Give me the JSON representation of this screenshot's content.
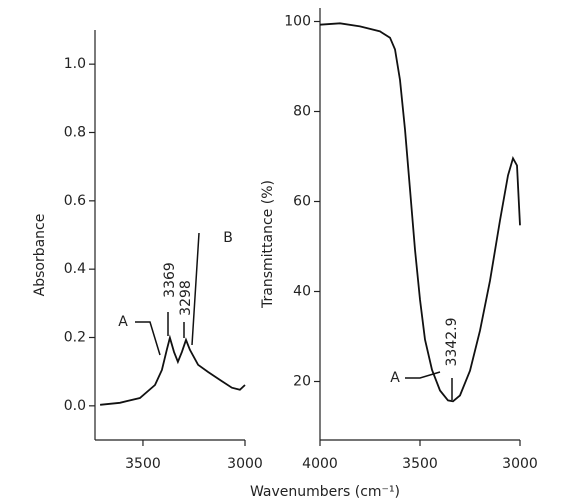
{
  "chart_data": [
    {
      "type": "line",
      "ylabel": "Absorbance",
      "xlim": [
        3735,
        3000
      ],
      "xticks": [
        3500,
        3000
      ],
      "ylim": [
        -0.1,
        1.1
      ],
      "yticks": [
        {
          "value": 0,
          "label": "0.0"
        },
        0.2,
        0.4,
        0.6,
        0.8,
        {
          "value": 1,
          "label": "1.0"
        }
      ],
      "annotations": [
        "A",
        "3369",
        "3298",
        "B"
      ],
      "series": [
        {
          "color": "#111",
          "x": [
            3710,
            3613,
            3515,
            3441,
            3407,
            3383,
            3368,
            3348,
            3329,
            3309,
            3289,
            3270,
            3230,
            3181,
            3123,
            3064,
            3025,
            3000
          ],
          "values": [
            0.003,
            0.009,
            0.023,
            0.061,
            0.105,
            0.164,
            0.199,
            0.158,
            0.129,
            0.158,
            0.193,
            0.164,
            0.12,
            0.099,
            0.076,
            0.053,
            0.047,
            0.061
          ]
        }
      ]
    },
    {
      "type": "line",
      "ylabel": "Transmittance (%)",
      "xlabel": "Wavenumbers (cm⁻¹)",
      "xlim": [
        4000,
        3000
      ],
      "xticks": [
        4000,
        3500,
        3000
      ],
      "ylim": [
        7,
        103
      ],
      "yticks": [
        20,
        40,
        60,
        80,
        100
      ],
      "annotations": [
        "A",
        "3342.9"
      ],
      "series": [
        {
          "color": "#111",
          "x": [
            4000,
            3900,
            3800,
            3700,
            3650,
            3625,
            3600,
            3575,
            3550,
            3525,
            3500,
            3475,
            3440,
            3400,
            3360,
            3335,
            3300,
            3250,
            3200,
            3150,
            3100,
            3060,
            3035,
            3015,
            3000
          ],
          "values": [
            99.3,
            99.6,
            98.9,
            97.8,
            96.4,
            93.8,
            87,
            76,
            62.7,
            49.3,
            38.2,
            29.3,
            22.6,
            18,
            15.8,
            15.6,
            16.9,
            22.4,
            31.3,
            42.4,
            55.8,
            65.8,
            69.6,
            68,
            54.7
          ]
        }
      ]
    }
  ]
}
